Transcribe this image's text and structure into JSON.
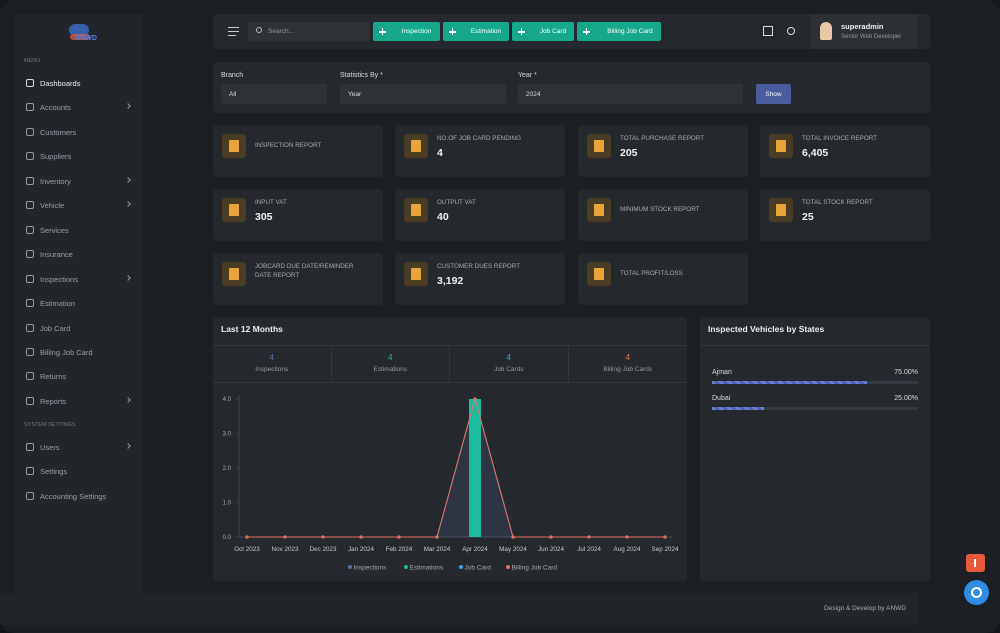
{
  "logo": "ANWD",
  "sidebar": {
    "menu_label": "MENU",
    "items": [
      {
        "label": "Dashboards",
        "active": true
      },
      {
        "label": "Accounts",
        "submenu": true
      },
      {
        "label": "Customers"
      },
      {
        "label": "Suppliers"
      },
      {
        "label": "Inventory",
        "submenu": true
      },
      {
        "label": "Vehicle",
        "submenu": true
      },
      {
        "label": "Services"
      },
      {
        "label": "Insurance"
      },
      {
        "label": "Inspections",
        "submenu": true
      },
      {
        "label": "Estimation"
      },
      {
        "label": "Job Card"
      },
      {
        "label": "Billing Job Card"
      },
      {
        "label": "Returns"
      },
      {
        "label": "Reports",
        "submenu": true
      }
    ],
    "system_label": "SYSTEM SETTINGS",
    "system_items": [
      {
        "label": "Users",
        "submenu": true
      },
      {
        "label": "Settings"
      },
      {
        "label": "Accounting Settings"
      }
    ]
  },
  "topbar": {
    "search_placeholder": "Search...",
    "quick_buttons": [
      "Inspection",
      "Estimation",
      "Job Card",
      "Billing Job Card"
    ],
    "user": {
      "name": "superadmin",
      "role": "Senior Web Developer"
    }
  },
  "filters": {
    "fields": [
      {
        "label": "Branch",
        "value": "All"
      },
      {
        "label": "Statistics By *",
        "value": "Year"
      },
      {
        "label": "Year *",
        "value": "2024"
      }
    ],
    "button": "Show"
  },
  "cards": [
    {
      "label": "INSPECTION REPORT"
    },
    {
      "label": "NO.OF JOB CARD PENDING",
      "value": "4"
    },
    {
      "label": "TOTAL PURCHASE REPORT",
      "value": "205"
    },
    {
      "label": "TOTAL INVOICE REPORT",
      "value": "6,405"
    },
    {
      "label": "INPUT VAT",
      "value": "305"
    },
    {
      "label": "OUTPUT VAT",
      "value": "40"
    },
    {
      "label": "MINIMUM STOCK REPORT"
    },
    {
      "label": "TOTAL STOCK REPORT",
      "value": "25"
    },
    {
      "label": "JOBCARD DUE DATE/REMINDER DATE REPORT"
    },
    {
      "label": "CUSTOMER DUES REPORT",
      "value": "3,192"
    },
    {
      "label": "TOTAL PROFIT/LOSS"
    }
  ],
  "chart_data": {
    "type": "bar",
    "title": "Last 12 Months",
    "summary": [
      {
        "value": 4,
        "label": "Inspections"
      },
      {
        "value": 4,
        "label": "Estimations"
      },
      {
        "value": 4,
        "label": "Job Cards"
      },
      {
        "value": 4,
        "label": "Billing Job Cards"
      }
    ],
    "categories": [
      "Oct 2023",
      "Nov 2023",
      "Dec 2023",
      "Jan 2024",
      "Feb 2024",
      "Mar 2024",
      "Apr 2024",
      "May 2024",
      "Jun 2024",
      "Jul 2024",
      "Aug 2024",
      "Sep 2024"
    ],
    "series": [
      {
        "name": "Inspections",
        "type": "area",
        "color": "#5a6fa8",
        "values": [
          0,
          0,
          0,
          0,
          0,
          0,
          4,
          0,
          0,
          0,
          0,
          0
        ]
      },
      {
        "name": "Estimations",
        "type": "bar",
        "color": "#1abc9c",
        "values": [
          0,
          0,
          0,
          0,
          0,
          0,
          4,
          0,
          0,
          0,
          0,
          0
        ]
      },
      {
        "name": "Job Card",
        "type": "line",
        "color": "#3ba7e0",
        "values": [
          0,
          0,
          0,
          0,
          0,
          0,
          4,
          0,
          0,
          0,
          0,
          0
        ]
      },
      {
        "name": "Billing Job Card",
        "type": "line",
        "color": "#e8705f",
        "values": [
          0,
          0,
          0,
          0,
          0,
          0,
          4,
          0,
          0,
          0,
          0,
          0
        ]
      }
    ],
    "ylim": [
      0,
      4
    ],
    "yticks": [
      {
        "value": 0,
        "label": "0.0"
      },
      {
        "value": 1,
        "label": "1.0"
      },
      {
        "value": 2,
        "label": "2.0"
      },
      {
        "value": 3,
        "label": "3.0"
      },
      {
        "value": 4,
        "label": "4.0"
      }
    ]
  },
  "states": {
    "title": "Inspected Vehicles by States",
    "items": [
      {
        "name": "Ajman",
        "value": 75,
        "value_label": "75.00%"
      },
      {
        "name": "Dubai",
        "value": 25,
        "value_label": "25.00%"
      }
    ]
  },
  "footer": "Design & Develop by ANWD"
}
